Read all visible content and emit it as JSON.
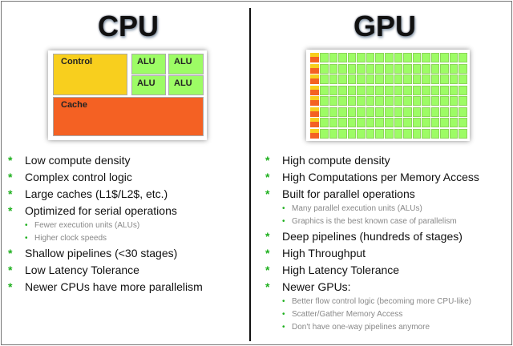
{
  "cpu": {
    "title": "CPU",
    "diagram": {
      "control": "Control",
      "alu": [
        "ALU",
        "ALU",
        "ALU",
        "ALU"
      ],
      "cache": "Cache"
    },
    "bullets": [
      {
        "text": "Low compute density",
        "level": 1
      },
      {
        "text": "Complex control logic",
        "level": 1
      },
      {
        "text": "Large caches (L1$/L2$, etc.)",
        "level": 1
      },
      {
        "text": "Optimized for serial operations",
        "level": 1
      },
      {
        "text": "Fewer execution units (ALUs)",
        "level": 2
      },
      {
        "text": "Higher clock speeds",
        "level": 2
      },
      {
        "text": "Shallow pipelines (<30 stages)",
        "level": 1
      },
      {
        "text": "Low Latency Tolerance",
        "level": 1
      },
      {
        "text": "Newer CPUs have more parallelism",
        "level": 1
      }
    ]
  },
  "gpu": {
    "title": "GPU",
    "bullets": [
      {
        "text": "High compute density",
        "level": 1
      },
      {
        "text": "High Computations per Memory Access",
        "level": 1
      },
      {
        "text": "Built for parallel operations",
        "level": 1
      },
      {
        "text": "Many parallel execution units (ALUs)",
        "level": 2
      },
      {
        "text": "Graphics is the best known case of parallelism",
        "level": 2
      },
      {
        "text": "Deep pipelines (hundreds of stages)",
        "level": 1
      },
      {
        "text": "High Throughput",
        "level": 1
      },
      {
        "text": "High Latency Tolerance",
        "level": 1
      },
      {
        "text": "Newer GPUs:",
        "level": 1
      },
      {
        "text": "Better flow control logic (becoming more CPU-like)",
        "level": 2
      },
      {
        "text": "Scatter/Gather Memory Access",
        "level": 2
      },
      {
        "text": "Don't have one-way pipelines anymore",
        "level": 2
      }
    ]
  },
  "colors": {
    "control": "#f8cf1e",
    "alu": "#9dfc65",
    "cache": "#f46123",
    "bullet": "#1fb01f"
  },
  "icons": {
    "main_bullet": "star-icon",
    "sub_bullet": "dot-icon"
  }
}
